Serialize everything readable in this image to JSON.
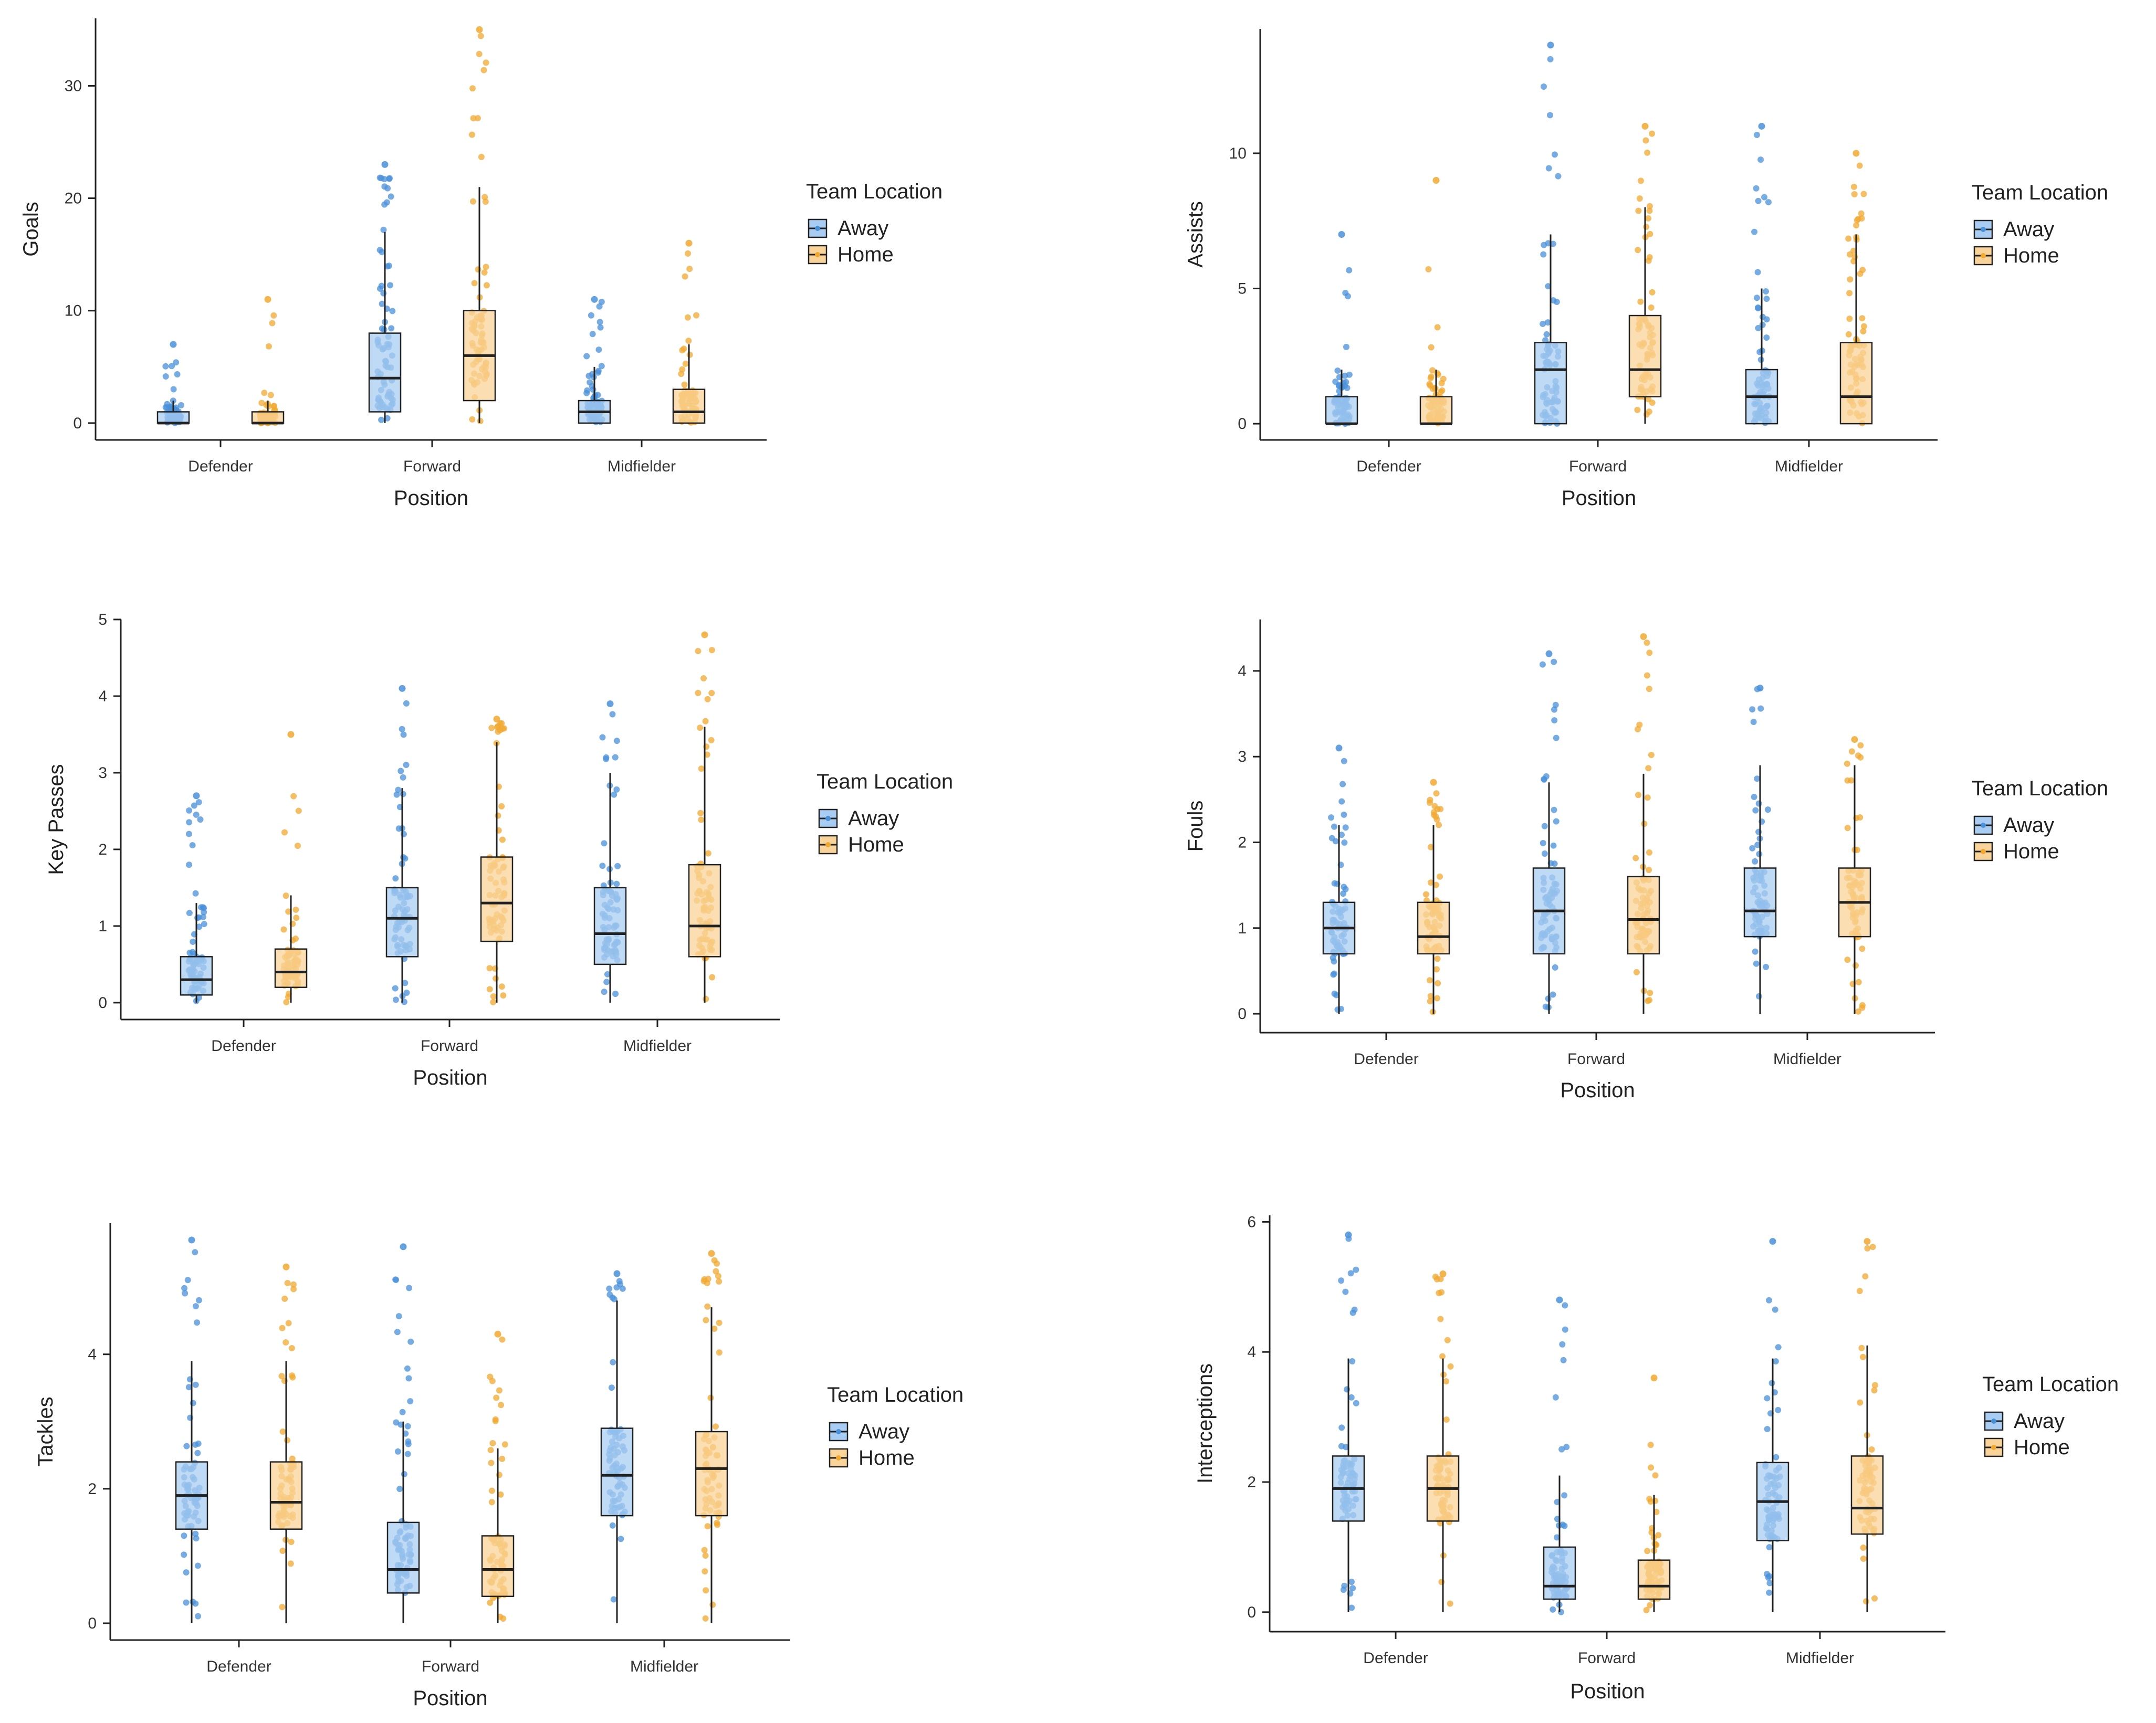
{
  "colors": {
    "away": "#4a90d9",
    "home": "#f0a830",
    "away_fill": "#a9cdf2",
    "home_fill": "#f9d49a",
    "axis": "#222222",
    "median": "#222222"
  },
  "legend_title": "Team Location",
  "group_labels": [
    "Away",
    "Home"
  ],
  "chart_data": [
    {
      "type": "box",
      "title": "",
      "xlabel": "Position",
      "ylabel": "Goals",
      "categories": [
        "Defender",
        "Forward",
        "Midfielder"
      ],
      "ylim": [
        -1.5,
        36
      ],
      "yticks": [
        0,
        10,
        20,
        30
      ],
      "series": [
        {
          "name": "Away",
          "boxes": [
            {
              "q1": 0,
              "median": 0,
              "q3": 1,
              "whisker_low": 0,
              "whisker_high": 2,
              "max": 7
            },
            {
              "q1": 1,
              "median": 4,
              "q3": 8,
              "whisker_low": 0,
              "whisker_high": 17,
              "max": 23
            },
            {
              "q1": 0,
              "median": 1,
              "q3": 2,
              "whisker_low": 0,
              "whisker_high": 5,
              "max": 11
            }
          ]
        },
        {
          "name": "Home",
          "boxes": [
            {
              "q1": 0,
              "median": 0,
              "q3": 1,
              "whisker_low": 0,
              "whisker_high": 2,
              "max": 11
            },
            {
              "q1": 2,
              "median": 6,
              "q3": 10,
              "whisker_low": 0,
              "whisker_high": 21,
              "max": 35
            },
            {
              "q1": 0,
              "median": 1,
              "q3": 3,
              "whisker_low": 0,
              "whisker_high": 7,
              "max": 16
            }
          ]
        }
      ]
    },
    {
      "type": "box",
      "title": "",
      "xlabel": "Position",
      "ylabel": "Assists",
      "categories": [
        "Defender",
        "Forward",
        "Midfielder"
      ],
      "ylim": [
        -0.6,
        14.6
      ],
      "yticks": [
        0,
        5,
        10
      ],
      "series": [
        {
          "name": "Away",
          "boxes": [
            {
              "q1": 0,
              "median": 0,
              "q3": 1,
              "whisker_low": 0,
              "whisker_high": 2,
              "max": 7
            },
            {
              "q1": 0,
              "median": 2,
              "q3": 3,
              "whisker_low": 0,
              "whisker_high": 7,
              "max": 14
            },
            {
              "q1": 0,
              "median": 1,
              "q3": 2,
              "whisker_low": 0,
              "whisker_high": 5,
              "max": 11
            }
          ]
        },
        {
          "name": "Home",
          "boxes": [
            {
              "q1": 0,
              "median": 0,
              "q3": 1,
              "whisker_low": 0,
              "whisker_high": 2,
              "max": 9
            },
            {
              "q1": 1,
              "median": 2,
              "q3": 4,
              "whisker_low": 0,
              "whisker_high": 8,
              "max": 11
            },
            {
              "q1": 0,
              "median": 1,
              "q3": 3,
              "whisker_low": 0,
              "whisker_high": 7,
              "max": 10
            }
          ]
        }
      ]
    },
    {
      "type": "box",
      "title": "",
      "xlabel": "Position",
      "ylabel": "Key Passes",
      "categories": [
        "Defender",
        "Forward",
        "Midfielder"
      ],
      "ylim": [
        -0.22,
        5.0
      ],
      "yticks": [
        0,
        1,
        2,
        3,
        4,
        5
      ],
      "series": [
        {
          "name": "Away",
          "boxes": [
            {
              "q1": 0.1,
              "median": 0.3,
              "q3": 0.6,
              "whisker_low": 0,
              "whisker_high": 1.3,
              "max": 2.7
            },
            {
              "q1": 0.6,
              "median": 1.1,
              "q3": 1.5,
              "whisker_low": 0,
              "whisker_high": 2.8,
              "max": 4.1
            },
            {
              "q1": 0.5,
              "median": 0.9,
              "q3": 1.5,
              "whisker_low": 0,
              "whisker_high": 3.0,
              "max": 3.9
            }
          ]
        },
        {
          "name": "Home",
          "boxes": [
            {
              "q1": 0.2,
              "median": 0.4,
              "q3": 0.7,
              "whisker_low": 0,
              "whisker_high": 1.4,
              "max": 3.5
            },
            {
              "q1": 0.8,
              "median": 1.3,
              "q3": 1.9,
              "whisker_low": 0,
              "whisker_high": 3.4,
              "max": 3.7
            },
            {
              "q1": 0.6,
              "median": 1.0,
              "q3": 1.8,
              "whisker_low": 0,
              "whisker_high": 3.6,
              "max": 4.8
            }
          ]
        }
      ]
    },
    {
      "type": "box",
      "title": "",
      "xlabel": "Position",
      "ylabel": "Fouls",
      "categories": [
        "Defender",
        "Forward",
        "Midfielder"
      ],
      "ylim": [
        -0.22,
        4.6
      ],
      "yticks": [
        0,
        1,
        2,
        3,
        4
      ],
      "series": [
        {
          "name": "Away",
          "boxes": [
            {
              "q1": 0.7,
              "median": 1.0,
              "q3": 1.3,
              "whisker_low": 0,
              "whisker_high": 2.2,
              "max": 3.1
            },
            {
              "q1": 0.7,
              "median": 1.2,
              "q3": 1.7,
              "whisker_low": 0,
              "whisker_high": 2.7,
              "max": 4.2
            },
            {
              "q1": 0.9,
              "median": 1.2,
              "q3": 1.7,
              "whisker_low": 0,
              "whisker_high": 2.9,
              "max": 3.8
            }
          ]
        },
        {
          "name": "Home",
          "boxes": [
            {
              "q1": 0.7,
              "median": 0.9,
              "q3": 1.3,
              "whisker_low": 0,
              "whisker_high": 2.2,
              "max": 2.7
            },
            {
              "q1": 0.7,
              "median": 1.1,
              "q3": 1.6,
              "whisker_low": 0,
              "whisker_high": 2.8,
              "max": 4.4
            },
            {
              "q1": 0.9,
              "median": 1.3,
              "q3": 1.7,
              "whisker_low": 0,
              "whisker_high": 2.9,
              "max": 3.2
            }
          ]
        }
      ]
    },
    {
      "type": "box",
      "title": "",
      "xlabel": "Position",
      "ylabel": "Tackles",
      "categories": [
        "Defender",
        "Forward",
        "Midfielder"
      ],
      "ylim": [
        -0.25,
        5.95
      ],
      "yticks": [
        0,
        2,
        4
      ],
      "series": [
        {
          "name": "Away",
          "boxes": [
            {
              "q1": 1.4,
              "median": 1.9,
              "q3": 2.4,
              "whisker_low": 0,
              "whisker_high": 3.9,
              "max": 5.7
            },
            {
              "q1": 0.45,
              "median": 0.8,
              "q3": 1.5,
              "whisker_low": 0,
              "whisker_high": 3.0,
              "max": 5.6
            },
            {
              "q1": 1.6,
              "median": 2.2,
              "q3": 2.9,
              "whisker_low": 0,
              "whisker_high": 4.8,
              "max": 5.2
            }
          ]
        },
        {
          "name": "Home",
          "boxes": [
            {
              "q1": 1.4,
              "median": 1.8,
              "q3": 2.4,
              "whisker_low": 0,
              "whisker_high": 3.9,
              "max": 5.3
            },
            {
              "q1": 0.4,
              "median": 0.8,
              "q3": 1.3,
              "whisker_low": 0,
              "whisker_high": 2.6,
              "max": 4.3
            },
            {
              "q1": 1.6,
              "median": 2.3,
              "q3": 2.85,
              "whisker_low": 0,
              "whisker_high": 4.7,
              "max": 5.5
            }
          ]
        }
      ]
    },
    {
      "type": "box",
      "title": "",
      "xlabel": "Position",
      "ylabel": "Interceptions",
      "categories": [
        "Defender",
        "Forward",
        "Midfielder"
      ],
      "ylim": [
        -0.3,
        6.1
      ],
      "yticks": [
        0,
        2,
        4,
        6
      ],
      "series": [
        {
          "name": "Away",
          "boxes": [
            {
              "q1": 1.4,
              "median": 1.9,
              "q3": 2.4,
              "whisker_low": 0,
              "whisker_high": 3.9,
              "max": 5.8
            },
            {
              "q1": 0.2,
              "median": 0.4,
              "q3": 1.0,
              "whisker_low": 0,
              "whisker_high": 2.1,
              "max": 4.8
            },
            {
              "q1": 1.1,
              "median": 1.7,
              "q3": 2.3,
              "whisker_low": 0,
              "whisker_high": 3.9,
              "max": 5.7
            }
          ]
        },
        {
          "name": "Home",
          "boxes": [
            {
              "q1": 1.4,
              "median": 1.9,
              "q3": 2.4,
              "whisker_low": 0,
              "whisker_high": 3.9,
              "max": 5.2
            },
            {
              "q1": 0.2,
              "median": 0.4,
              "q3": 0.8,
              "whisker_low": 0,
              "whisker_high": 1.8,
              "max": 3.6
            },
            {
              "q1": 1.2,
              "median": 1.6,
              "q3": 2.4,
              "whisker_low": 0,
              "whisker_high": 4.1,
              "max": 5.7
            }
          ]
        }
      ]
    }
  ]
}
